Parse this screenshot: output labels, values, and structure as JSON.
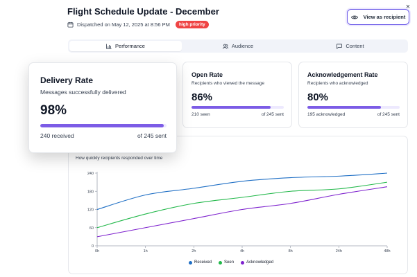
{
  "header": {
    "title": "Flight Schedule Update - December",
    "dispatched": "Dispatched on May 12, 2025 at 8:56 PM",
    "priority_badge": "high priority",
    "view_button": "View as recipient",
    "close_glyph": "×"
  },
  "tabs": [
    {
      "label": "Performance",
      "icon": "bar-chart-icon",
      "active": true
    },
    {
      "label": "Audience",
      "icon": "users-icon",
      "active": false
    },
    {
      "label": "Content",
      "icon": "message-icon",
      "active": false
    }
  ],
  "cards": {
    "delivery": {
      "title": "Delivery Rate",
      "subtitle": "Messages successfully delivered",
      "value": "98%",
      "progress": 0.98,
      "left": "240 received",
      "right": "of 245 sent"
    },
    "open": {
      "title": "Open Rate",
      "subtitle": "Recipients who viewed the message",
      "value": "86%",
      "progress": 0.86,
      "left": "210 seen",
      "right": "of 245 sent"
    },
    "ack": {
      "title": "Acknowledgement Rate",
      "subtitle": "Recipients who acknowledged",
      "value": "80%",
      "progress": 0.8,
      "left": "195 acknowledged",
      "right": "of 245 sent"
    }
  },
  "colors": {
    "accent": "#7c5ce6",
    "received": "#1f6fc5",
    "seen": "#22b84a",
    "acknowledged": "#7e22ce",
    "badge": "#ef4444"
  },
  "chart_data": {
    "type": "line",
    "subtitle": "How quickly recipients responded over time",
    "x": [
      "0h",
      "1h",
      "2h",
      "4h",
      "8h",
      "24h",
      "48h"
    ],
    "ylim": [
      0,
      240
    ],
    "yticks": [
      0,
      60,
      120,
      180,
      240
    ],
    "grid": false,
    "legend_position": "bottom",
    "series": [
      {
        "name": "Received",
        "color": "#1f6fc5",
        "values": [
          120,
          168,
          190,
          213,
          225,
          230,
          240
        ]
      },
      {
        "name": "Seen",
        "color": "#22b84a",
        "values": [
          60,
          105,
          140,
          160,
          180,
          188,
          210
        ]
      },
      {
        "name": "Acknowledged",
        "color": "#7e22ce",
        "values": [
          30,
          60,
          90,
          120,
          140,
          170,
          195
        ]
      }
    ]
  }
}
